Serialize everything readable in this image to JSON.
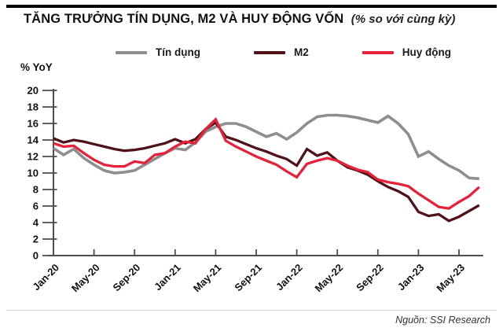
{
  "header": {
    "title": "TĂNG TRƯỞNG TÍN DỤNG, M2 VÀ HUY ĐỘNG VỐN",
    "subtitle": "(% so với cùng kỳ)"
  },
  "chart_data": {
    "type": "line",
    "title": "TĂNG TRƯỞNG TÍN DỤNG, M2 VÀ HUY ĐỘNG VỐN (% so với cùng kỳ)",
    "ylabel": "% YoY",
    "ylim": [
      0,
      20
    ],
    "ytick_step": 2,
    "grid": false,
    "legend_position": "top",
    "x_start": "Jan-20",
    "x_end": "Jul-23",
    "x_frequency": "monthly",
    "x_tick_labels": [
      "Jan-20",
      "May-20",
      "Sep-20",
      "Jan-21",
      "May-21",
      "Sep-21",
      "Jan-22",
      "May-22",
      "Sep-22",
      "Jan-23",
      "May-23"
    ],
    "x_tick_indices": [
      0,
      4,
      8,
      12,
      16,
      20,
      24,
      28,
      32,
      36,
      40
    ],
    "series": [
      {
        "name": "Tín dụng",
        "id": "tin-dung",
        "color": "#8e8e8e",
        "values": [
          13.0,
          12.2,
          12.9,
          11.8,
          11.0,
          10.3,
          10.0,
          10.1,
          10.3,
          11.0,
          11.7,
          12.4,
          13.0,
          12.8,
          13.7,
          15.0,
          15.6,
          16.0,
          16.0,
          15.6,
          15.0,
          14.4,
          14.8,
          14.1,
          14.9,
          16.0,
          16.8,
          17.0,
          17.0,
          16.9,
          16.7,
          16.4,
          16.1,
          16.9,
          16.0,
          14.7,
          12.0,
          12.6,
          11.7,
          10.9,
          10.3,
          9.4,
          9.3
        ]
      },
      {
        "name": "M2",
        "id": "m2",
        "color": "#4e1218",
        "values": [
          14.2,
          13.7,
          14.0,
          13.8,
          13.5,
          13.2,
          12.9,
          12.7,
          12.8,
          13.0,
          13.3,
          13.6,
          14.1,
          13.6,
          14.1,
          15.3,
          16.1,
          14.4,
          14.0,
          13.5,
          13.0,
          12.6,
          12.1,
          11.7,
          10.9,
          12.9,
          12.1,
          12.5,
          11.5,
          10.7,
          10.3,
          9.8,
          9.0,
          8.3,
          7.8,
          7.1,
          5.3,
          4.8,
          5.0,
          4.2,
          4.7,
          5.4,
          6.1
        ]
      },
      {
        "name": "Huy động",
        "id": "huy-dong",
        "color": "#e6213a",
        "values": [
          13.6,
          13.2,
          13.3,
          12.4,
          11.6,
          11.0,
          10.8,
          10.8,
          11.4,
          11.2,
          12.2,
          12.4,
          13.2,
          13.8,
          13.6,
          15.3,
          16.5,
          13.9,
          13.2,
          12.6,
          12.0,
          11.5,
          11.0,
          10.2,
          9.5,
          11.1,
          11.5,
          11.8,
          11.5,
          10.9,
          10.4,
          10.1,
          9.2,
          8.9,
          8.7,
          8.4,
          7.5,
          6.7,
          5.9,
          5.7,
          6.5,
          7.2,
          8.3
        ]
      }
    ],
    "axis_color": "#4d4d4d",
    "tick_label_color": "#111111",
    "source": "Nguồn: SSI Research"
  }
}
